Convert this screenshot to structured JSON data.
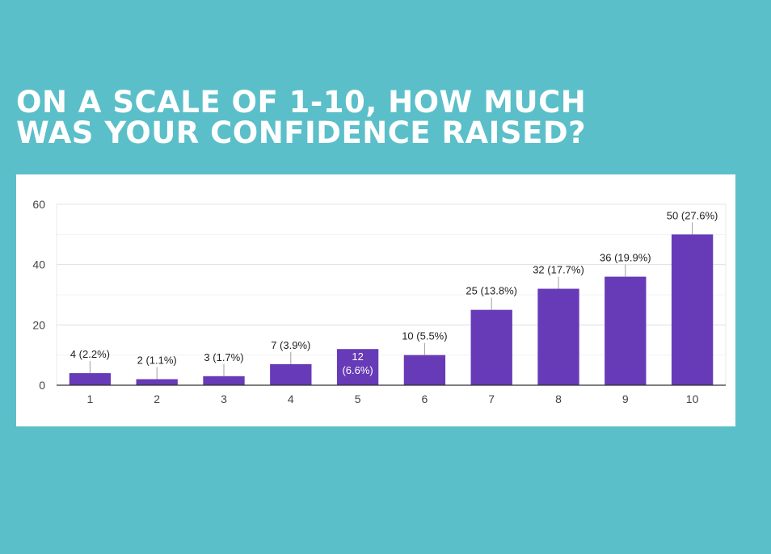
{
  "title": {
    "line1": "ON A SCALE OF 1-10, HOW MUCH",
    "line2": "WAS YOUR CONFIDENCE RAISED?"
  },
  "colors": {
    "background": "#5bbfc9",
    "bar": "#673ab7",
    "card": "#ffffff"
  },
  "chart_data": {
    "type": "bar",
    "categories": [
      "1",
      "2",
      "3",
      "4",
      "5",
      "6",
      "7",
      "8",
      "9",
      "10"
    ],
    "values": [
      4,
      2,
      3,
      7,
      12,
      10,
      25,
      32,
      36,
      50
    ],
    "labels": [
      "4 (2.2%)",
      "2 (1.1%)",
      "3 (1.7%)",
      "7 (3.9%)",
      "12 (6.6%)",
      "10 (5.5%)",
      "25 (13.8%)",
      "32 (17.7%)",
      "36 (19.9%)",
      "50 (27.6%)"
    ],
    "label_inside": [
      false,
      false,
      false,
      false,
      true,
      false,
      false,
      false,
      false,
      false
    ],
    "yticks": [
      0,
      20,
      40,
      60
    ],
    "ylim": [
      0,
      60
    ],
    "grid": true,
    "xlabel": "",
    "ylabel": ""
  }
}
